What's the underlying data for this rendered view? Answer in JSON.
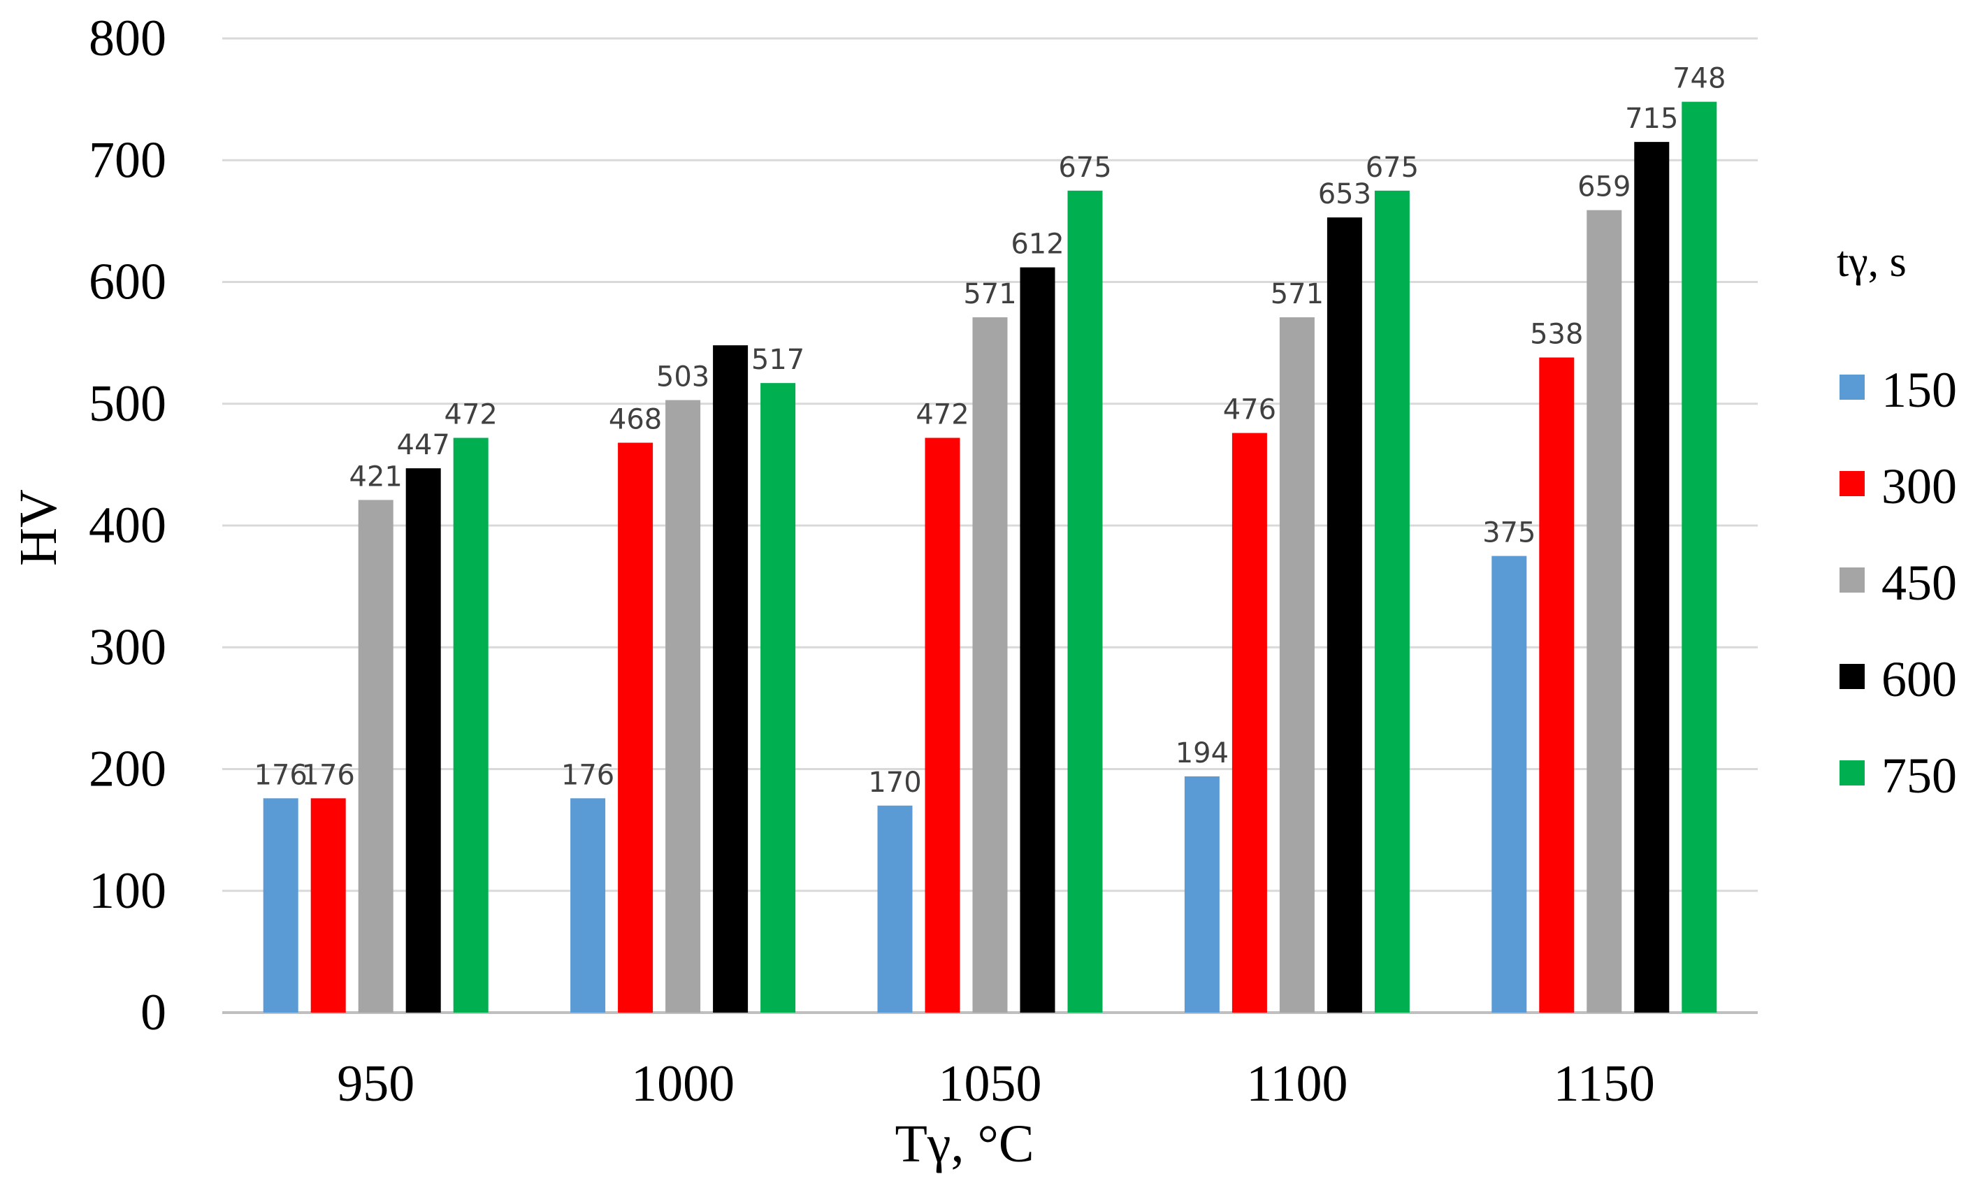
{
  "chart_data": {
    "type": "bar",
    "categories": [
      "950",
      "1000",
      "1050",
      "1100",
      "1150"
    ],
    "series": [
      {
        "name": "150",
        "color": "#5b9bd5",
        "values": [
          176,
          176,
          170,
          194,
          375
        ]
      },
      {
        "name": "300",
        "color": "#ff0000",
        "values": [
          176,
          468,
          472,
          476,
          538
        ]
      },
      {
        "name": "450",
        "color": "#a5a5a5",
        "values": [
          421,
          503,
          571,
          571,
          659
        ]
      },
      {
        "name": "600",
        "color": "#000000",
        "values": [
          447,
          548,
          612,
          653,
          715
        ]
      },
      {
        "name": "750",
        "color": "#00b050",
        "values": [
          472,
          517,
          675,
          675,
          748
        ]
      }
    ],
    "data_labels": [
      [
        "176",
        "176",
        "170",
        "194",
        "375"
      ],
      [
        "176",
        "468",
        "472",
        "476",
        "538"
      ],
      [
        "421",
        "503",
        "571",
        "571",
        "659"
      ],
      [
        "447",
        "548",
        "612",
        "653",
        "715"
      ],
      [
        "472",
        "517",
        "675",
        "675",
        "748"
      ]
    ],
    "data_label_shown": [
      [
        true,
        true,
        true,
        true,
        true
      ],
      [
        true,
        true,
        true,
        true,
        true
      ],
      [
        true,
        true,
        true,
        true,
        true
      ],
      [
        true,
        false,
        true,
        true,
        true
      ],
      [
        true,
        true,
        true,
        true,
        true
      ]
    ],
    "title": "",
    "xlabel": "Tγ, °C",
    "ylabel": "HV",
    "ylim": [
      0,
      800
    ],
    "yticks": [
      "0",
      "100",
      "200",
      "300",
      "400",
      "500",
      "600",
      "700",
      "800"
    ],
    "grid": true,
    "legend_title": "tγ, s",
    "legend_position": "right"
  }
}
